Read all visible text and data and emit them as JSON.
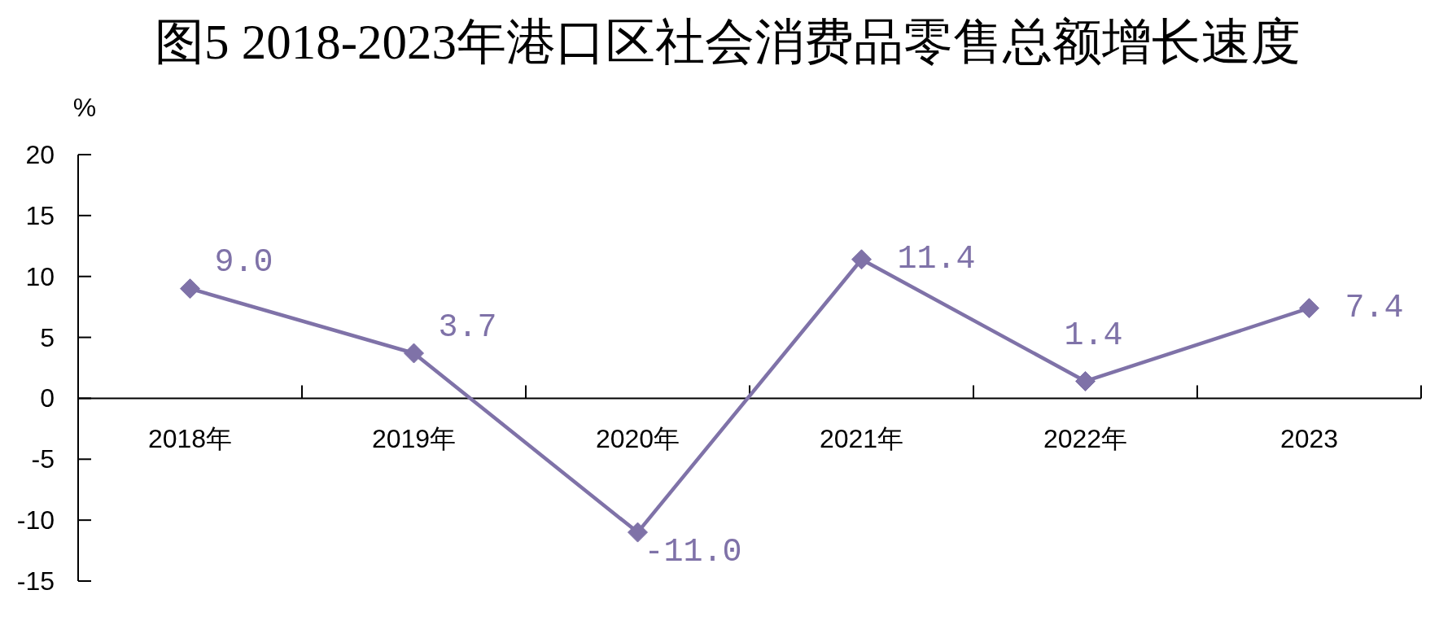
{
  "chart_data": {
    "type": "line",
    "title": "图5 2018-2023年港口区社会消费品零售总额增长速度",
    "ylabel": "%",
    "categories": [
      "2018年",
      "2019年",
      "2020年",
      "2021年",
      "2022年",
      "2023"
    ],
    "values": [
      9.0,
      3.7,
      -11.0,
      11.4,
      1.4,
      7.4
    ],
    "color": "#7f72a8",
    "value_labels": [
      "9.0",
      "3.7",
      "-11.0",
      "11.4",
      "1.4",
      "7.4"
    ],
    "ylim": [
      -15,
      20
    ],
    "yticks": [
      -15,
      -10,
      -5,
      0,
      5,
      10,
      15,
      20
    ],
    "marker": "diamond",
    "line_style": "solid"
  }
}
